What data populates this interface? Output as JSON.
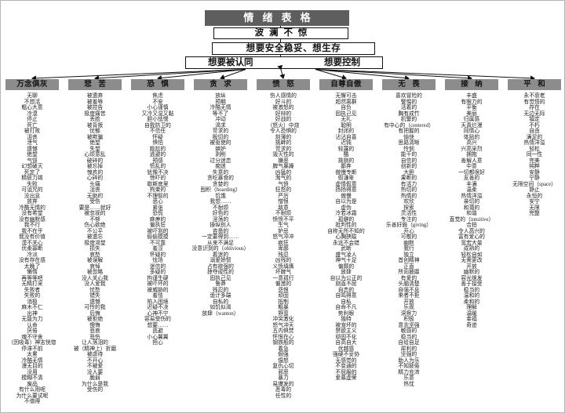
{
  "title": "情绪表格",
  "levels": {
    "level1": "波澜不惊",
    "level2": "想要安全稳妥、想生存",
    "level3_left": "想要被认同",
    "level3_right": "想要控制"
  },
  "colors": {
    "title_bg": "#5e5e5e",
    "title_text": "#ffffff",
    "column_header_bg": "#8c8c8c",
    "line": "#111111"
  },
  "columns": [
    {
      "header": "万念俱灰",
      "items": [
        "无聊",
        "不想活",
        "粗心大意",
        "冷漠",
        "停止",
        "死亡",
        "被打败",
        "沮丧",
        "泄气",
        "遗憾",
        "绝望",
        "气馁",
        "幻想破灭",
        "死定了",
        "精疲力竭",
        "失败",
        "可诅咒的",
        "没出息",
        "放弃",
        "冷酷无情的",
        "没有希望",
        "没有幽默感",
        "我不行",
        "我不在乎",
        "我没有价值",
        "漠不关心",
        "优柔寡断",
        "冷淡",
        "没有存在感",
        "太晚了",
        "懒惰",
        "再等等吧",
        "无精打采",
        "失败者",
        "失败的",
        "消极",
        "麻木不仁",
        "出神",
        "无能为力",
        "认命",
        "厌倦",
        "魂不守舍",
        "（因吸毒）神志恍惚",
        "停滞不前",
        "太累",
        "冷酷无情",
        "漫无目的",
        "没用",
        "模糊不清",
        "废品",
        "有什么用呢",
        "为什么要试呢",
        "不值得"
      ]
    },
    {
      "header": "悲苦",
      "items": [
        "被遗弃",
        "被羞辱",
        "被控告",
        "极度痛苦",
        "丢脸",
        "被背叛",
        "忧郁",
        "被欺骗",
        "绝望",
        "失望",
        "心烦意乱",
        "破碎的",
        "被忘掉",
        "愧疚的",
        "心碎的",
        "头痛",
        "沮丧",
        "无助的",
        "受伤",
        "要是……就好",
        "被忽视的",
        "不够",
        "伤心欲绝",
        "不公平",
        "被遗忘",
        "极度渴望",
        "损失",
        "哀愁",
        "被误解",
        "哀悼",
        "被忽略",
        "没人关心我",
        "没人爱我",
        "忧愁",
        "错失",
        "遗憾",
        "可怜的我",
        "后悔",
        "被拒绝",
        "懊悔",
        "悲哀",
        "悲伤",
        "让人落泪的",
        "被（精神上）折磨",
        "被虐待",
        "不开心",
        "不被爱",
        "没人要",
        "脆弱",
        "为什么是我",
        "受伤的"
      ]
    },
    {
      "header": "恐惧",
      "items": [
        "焦虑",
        "不安",
        "小心谨慎",
        "又冷又湿又黏",
        "胆小怯懦",
        "自我防卫的",
        "不信任",
        "怀疑",
        "惧怕",
        "尴尬的",
        "逃避的",
        "预感",
        "慌乱的",
        "犹豫不决",
        "惊吓的",
        "歇斯底里",
        "拘束的",
        "不理智的",
        "恶心",
        "紧张",
        "恐慌",
        "麻痹的",
        "偏执狂",
        "被吓到的",
        "偷偷摸摸",
        "不可靠",
        "羞涩",
        "怀疑的",
        "怯场",
        "迷信的",
        "多疑的",
        "拘谨生硬",
        "被吓坏的",
        "被威胁的",
        "羞怯",
        "陷入困境",
        "迟疑不决",
        "心神不宁",
        "容易受伤的",
        "想要……",
        "逃避",
        "小心翼翼",
        "担心"
      ]
    },
    {
      "header": "贪求",
      "items": [
        "放纵",
        "预期",
        "冷酷无情",
        "等不了",
        "冲动",
        "渴求",
        "苛求的",
        "殷切的",
        "被驱使的",
        "嫉妒",
        "剥削",
        "过分迷恋",
        "痴迷",
        "失意的",
        "贪吃暴食的",
        "贪婪的",
        "囤积（hoarding）",
        "饥饿",
        "我想……",
        "不耐烦",
        "好色的",
        "淫荡的",
        "操纵别人",
        "吝啬的",
        "一定要得到……",
        "从来不满足",
        "没意识到的（oblivious）",
        "着迷的",
        "溺爱娇惯",
        "占有欲强的",
        "掠夺成性的",
        "固执己见",
        "鲁莽",
        "残忍的",
        "诡计多端",
        "自私的",
        "如饥似渴",
        "放肆（wanton）"
      ]
    },
    {
      "header": "愤怒",
      "items": [
        "伤人感情的",
        "好斗的",
        "被激怒的",
        "好辩的",
        "好战的",
        "（怒火）中烧",
        "令人恐惧的",
        "刻薄的",
        "挑衅的",
        "苛求的",
        "毁灭性的",
        "嫌恶",
        "脾气暴躁",
        "凶猛的",
        "淘气的",
        "气愤",
        "狂怒的",
        "严厉",
        "憎恨",
        "敌意",
        "不耐烦",
        "愤愤不平",
        "生气",
        "妒忌",
        "怒气冲冲",
        "疯狂",
        "卑鄙",
        "残忍",
        "凶残的",
        "义愤填膺",
        "坏脾气",
        "一意孤行",
        "偏激的",
        "怨恨",
        "顽固",
        "抵制",
        "粗暴",
        "野蛮",
        "冲突激化",
        "怒气冲天",
        "五内俱焚",
        "怀恨在心",
        "钢铁般的",
        "着急",
        "倔强",
        "愠怒",
        "复仇心切",
        "邪恶",
        "暴力",
        "易爆发的",
        "恶毒的",
        "任性的"
      ]
    },
    {
      "header": "自尊自傲",
      "items": [
        "无懈可击",
        "超然离群",
        "自负",
        "固执己见",
        "无礼",
        "聪明",
        "封闭的",
        "沾沾自喜",
        "迟钝",
        "轻蔑的",
        "酷",
        "挑剔的",
        "鄙弃",
        "傲慢专断",
        "假谦卑",
        "虚情假意",
        "扬扬得意",
        "傲慢",
        "自以为是",
        "虚伪",
        "冷若冰霜",
        "孤僻的",
        "批判性的",
        "自称无所不知的",
        "心胸狭隘",
        "永远不会错",
        "武断",
        "盛气凌人",
        "神气十足",
        "偏颇的",
        "放肆",
        "自以为公正的",
        "刚直不屈",
        "自恋的",
        "自鸣得意",
        "自私",
        "自命不凡",
        "势利眼",
        "独特",
        "被宠坏的",
        "禁欲主义",
        "顽固不化",
        "自高自大",
        "优越感",
        "强硬不妥协",
        "无感觉的",
        "不变通的",
        "不屈服的",
        "爱慕虚荣"
      ]
    },
    {
      "header": "无畏",
      "items": [
        "喜欢冒险的",
        "警惕的",
        "活着的",
        "胸有成竹",
        "机警的",
        "有中心的（centered）",
        "有把握的",
        "愉快",
        "思路清晰",
        "怜悯",
        "能干的",
        "自信的",
        "创新的",
        "大胆",
        "果断的",
        "有活力",
        "热切的",
        "热情的",
        "欢欣",
        "探索",
        "灵活性",
        "专注的",
        "乐善好施（giving）",
        "开心",
        "可敬的",
        "幽默",
        "我行",
        "独立",
        "首创精神",
        "正直",
        "所向披靡",
        "有爱的",
        "头脑清楚",
        "自强不息",
        "来者不拒",
        "开放",
        "乐观",
        "洞察力",
        "积极",
        "意志坚强",
        "敏感的",
        "稳当的",
        "自给自足",
        "犀利的",
        "坚强的",
        "助人为乐",
        "不知疲倦",
        "精力充沛",
        "乐意",
        "热忱"
      ]
    },
    {
      "header": "接纳",
      "items": [
        "丰盛",
        "有眼力的",
        "平衡",
        "美丽",
        "归属感",
        "天真烂漫",
        "同情心",
        "体贴的",
        "高兴",
        "兴高采烈",
        "拥抱",
        "善解人意",
        "中意",
        "一切都很好",
        "友善的",
        "丰满",
        "温柔",
        "热情洋溢",
        "亲切的",
        "和蔼的",
        "和谐",
        "直觉的（intuitive）",
        "合拍",
        "令人高兴的",
        "富有爱心的",
        "宽宏大量",
        "成熟的",
        "轻松自如",
        "无需更改",
        "开放",
        "幽默的",
        "容光焕发",
        "善于接受",
        "稳当的",
        "温和的",
        "柔和的",
        "理解",
        "温暖",
        "幸福",
        "奇迹"
      ]
    },
    {
      "header": "平和",
      "items": [
        "永不衰老",
        "有觉悟的",
        "存在",
        "无边无际",
        "镇定",
        "不朽",
        "自由",
        "满足的",
        "热情洋溢",
        "轻松",
        "同一性",
        "完美",
        "纯粹",
        "安静",
        "宁静",
        "无限空间（space）",
        "静止",
        "永恒的",
        "安宁",
        "无限",
        "完整"
      ]
    }
  ]
}
